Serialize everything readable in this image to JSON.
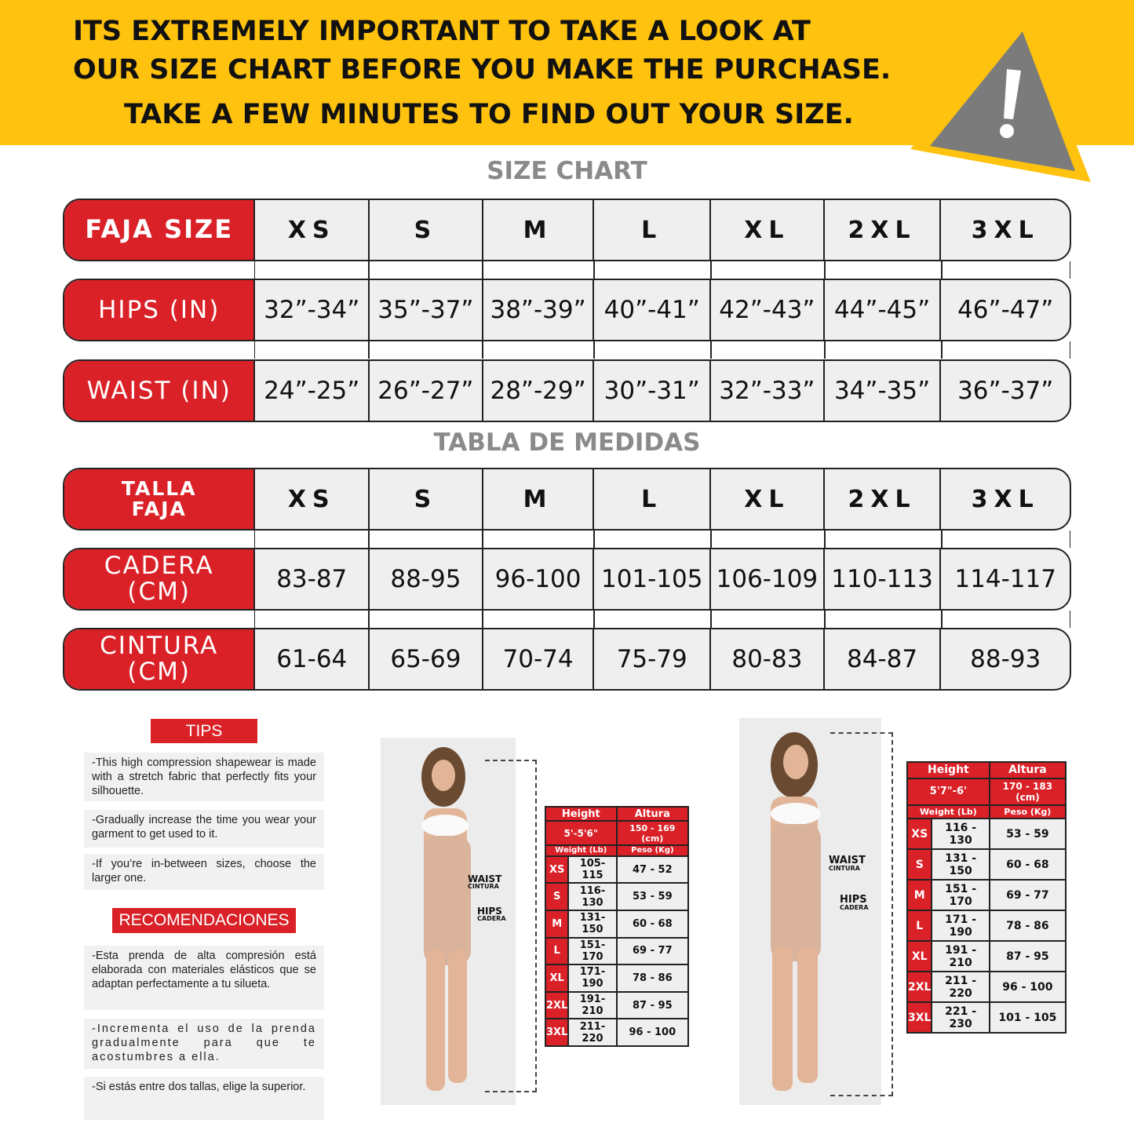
{
  "banner": {
    "line1": "ITS EXTREMELY IMPORTANT TO TAKE A LOOK AT",
    "line2": "OUR SIZE CHART BEFORE YOU MAKE THE PURCHASE.",
    "line3": "TAKE A FEW MINUTES TO FIND OUT YOUR SIZE.",
    "icon": "warning-triangle-icon",
    "color": "#FEC20F"
  },
  "size_chart": {
    "title": "SIZE CHART",
    "rows": [
      {
        "label": "FAJA SIZE",
        "values": [
          "XS",
          "S",
          "M",
          "L",
          "XL",
          "2XL",
          "3XL"
        ]
      },
      {
        "label": "HIPS (IN)",
        "values": [
          "32”-34”",
          "35”-37”",
          "38”-39”",
          "40”-41”",
          "42”-43”",
          "44”-45”",
          "46”-47”"
        ]
      },
      {
        "label": "WAIST (IN)",
        "values": [
          "24”-25”",
          "26”-27”",
          "28”-29”",
          "30”-31”",
          "32”-33”",
          "34”-35”",
          "36”-37”"
        ]
      }
    ]
  },
  "tabla": {
    "title": "TABLA DE MEDIDAS",
    "rows": [
      {
        "label": "TALLA\nFAJA",
        "values": [
          "XS",
          "S",
          "M",
          "L",
          "XL",
          "2XL",
          "3XL"
        ]
      },
      {
        "label": "CADERA\n(CM)",
        "values": [
          "83-87",
          "88-95",
          "96-100",
          "101-105",
          "106-109",
          "110-113",
          "114-117"
        ]
      },
      {
        "label": "CINTURA\n(CM)",
        "values": [
          "61-64",
          "65-69",
          "70-74",
          "75-79",
          "80-83",
          "84-87",
          "88-93"
        ]
      }
    ]
  },
  "tips": {
    "header": "TIPS",
    "items": [
      "-This high compression shapewear is made with a stretch fabric that perfectly fits your silhouette.",
      "-Gradually increase the time you wear your garment to get used to it.",
      "-If you’re in-between sizes, choose the larger one."
    ]
  },
  "recomendaciones": {
    "header": "RECOMENDACIONES",
    "items": [
      "-Esta prenda de alta compresión está elaborada con materiales elásticos que se adaptan perfectamente a tu silueta.",
      "-Incrementa el uso de la prenda gradualmente para que te acostumbres a ella.",
      "-Si estás entre dos tallas, elige la superior."
    ]
  },
  "model_labels": {
    "waist": "WAIST",
    "cintura": "CINTURA",
    "hips": "HIPS",
    "cadera": "CADERA"
  },
  "table_short": {
    "height_label": "Height",
    "altura_label": "Altura",
    "height": "5'-5'6\"",
    "altura": "150 - 169 (cm)",
    "weight_label": "Weight (Lb)",
    "peso_label": "Peso (Kg)",
    "rows": [
      [
        "XS",
        "105-115",
        "47 - 52"
      ],
      [
        "S",
        "116-130",
        "53 - 59"
      ],
      [
        "M",
        "131-150",
        "60 - 68"
      ],
      [
        "L",
        "151-170",
        "69 - 77"
      ],
      [
        "XL",
        "171-190",
        "78 - 86"
      ],
      [
        "2XL",
        "191-210",
        "87 - 95"
      ],
      [
        "3XL",
        "211-220",
        "96 - 100"
      ]
    ]
  },
  "table_tall": {
    "height_label": "Height",
    "altura_label": "Altura",
    "height": "5'7\"-6'",
    "altura": "170 - 183 (cm)",
    "weight_label": "Weight (Lb)",
    "peso_label": "Peso (Kg)",
    "rows": [
      [
        "XS",
        "116 - 130",
        "53 - 59"
      ],
      [
        "S",
        "131 - 150",
        "60 - 68"
      ],
      [
        "M",
        "151 - 170",
        "69 - 77"
      ],
      [
        "L",
        "171 - 190",
        "78 - 86"
      ],
      [
        "XL",
        "191 - 210",
        "87 - 95"
      ],
      [
        "2XL",
        "211 - 220",
        "96 - 100"
      ],
      [
        "3XL",
        "221 - 230",
        "101 - 105"
      ]
    ]
  }
}
